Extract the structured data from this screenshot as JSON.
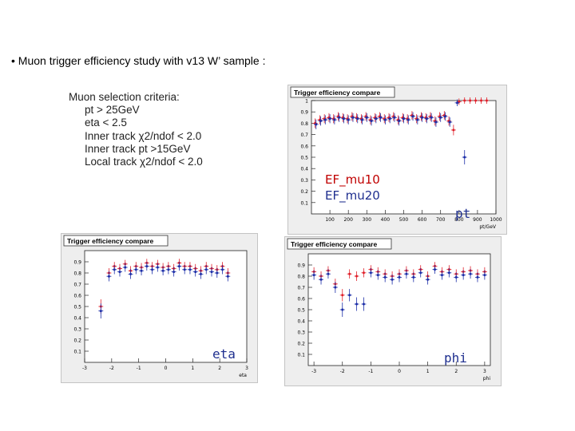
{
  "slide": {
    "heading": "• Muon trigger efficiency study with v13 W’ sample :",
    "criteria_title": "Muon selection criteria:",
    "criteria": [
      "pt > 25GeV",
      "eta  < 2.5",
      "Inner track χ2/ndof < 2.0",
      "Inner track pt >15GeV",
      "Local track χ2/ndof < 2.0"
    ],
    "legend": {
      "ef_mu10": "EF_mu10",
      "ef_mu20": "EF_mu20"
    },
    "tags": {
      "pt": "pt",
      "eta": "eta",
      "phi": "phi"
    },
    "colors": {
      "ef_mu10": "#e0202a",
      "ef_mu20": "#1c2ea8"
    }
  },
  "chart_data": [
    {
      "id": "pt",
      "type": "scatter",
      "title": "Trigger efficiency compare",
      "xlabel": "pt/GeV",
      "ylabel": "",
      "xlim": [
        0,
        1000
      ],
      "ylim": [
        0,
        1.0
      ],
      "xticks": [
        "100",
        "200",
        "300",
        "400",
        "500",
        "600",
        "700",
        "800",
        "900",
        "1000"
      ],
      "yticks": [
        "0.1",
        "0.2",
        "0.3",
        "0.4",
        "0.5",
        "0.6",
        "0.7",
        "0.8",
        "0.9",
        "1"
      ],
      "series": [
        {
          "name": "EF_mu10",
          "points": [
            [
              20,
              0.8
            ],
            [
              45,
              0.83
            ],
            [
              70,
              0.84
            ],
            [
              95,
              0.85
            ],
            [
              120,
              0.84
            ],
            [
              145,
              0.86
            ],
            [
              170,
              0.85
            ],
            [
              195,
              0.84
            ],
            [
              220,
              0.86
            ],
            [
              245,
              0.85
            ],
            [
              270,
              0.84
            ],
            [
              295,
              0.86
            ],
            [
              320,
              0.83
            ],
            [
              345,
              0.85
            ],
            [
              370,
              0.86
            ],
            [
              395,
              0.84
            ],
            [
              420,
              0.85
            ],
            [
              445,
              0.86
            ],
            [
              470,
              0.83
            ],
            [
              495,
              0.85
            ],
            [
              520,
              0.84
            ],
            [
              545,
              0.87
            ],
            [
              570,
              0.84
            ],
            [
              595,
              0.86
            ],
            [
              620,
              0.85
            ],
            [
              645,
              0.86
            ],
            [
              670,
              0.82
            ],
            [
              695,
              0.86
            ],
            [
              720,
              0.87
            ],
            [
              745,
              0.82
            ],
            [
              770,
              0.74
            ],
            [
              800,
              0.99
            ],
            [
              830,
              1.0
            ],
            [
              860,
              1.0
            ],
            [
              890,
              1.0
            ],
            [
              920,
              1.0
            ],
            [
              950,
              1.0
            ]
          ]
        },
        {
          "name": "EF_mu20",
          "points": [
            [
              25,
              0.79
            ],
            [
              50,
              0.82
            ],
            [
              75,
              0.83
            ],
            [
              100,
              0.84
            ],
            [
              125,
              0.83
            ],
            [
              150,
              0.85
            ],
            [
              175,
              0.84
            ],
            [
              200,
              0.83
            ],
            [
              225,
              0.85
            ],
            [
              250,
              0.84
            ],
            [
              275,
              0.83
            ],
            [
              300,
              0.85
            ],
            [
              325,
              0.82
            ],
            [
              350,
              0.84
            ],
            [
              375,
              0.85
            ],
            [
              400,
              0.83
            ],
            [
              425,
              0.84
            ],
            [
              450,
              0.85
            ],
            [
              475,
              0.82
            ],
            [
              500,
              0.84
            ],
            [
              525,
              0.83
            ],
            [
              550,
              0.86
            ],
            [
              575,
              0.83
            ],
            [
              600,
              0.85
            ],
            [
              625,
              0.84
            ],
            [
              650,
              0.85
            ],
            [
              675,
              0.81
            ],
            [
              700,
              0.85
            ],
            [
              725,
              0.86
            ],
            [
              750,
              0.81
            ],
            [
              790,
              0.98
            ],
            [
              830,
              0.5
            ]
          ]
        }
      ]
    },
    {
      "id": "eta",
      "type": "scatter",
      "title": "Trigger efficiency compare",
      "xlabel": "eta",
      "ylabel": "",
      "xlim": [
        -3,
        3
      ],
      "ylim": [
        0,
        1.0
      ],
      "xticks": [
        "-3",
        "-2",
        "-1",
        "0",
        "1",
        "2",
        "3"
      ],
      "yticks": [
        "0.1",
        "0.2",
        "0.3",
        "0.4",
        "0.5",
        "0.6",
        "0.7",
        "0.8",
        "0.9"
      ],
      "series": [
        {
          "name": "EF_mu10",
          "points": [
            [
              -2.4,
              0.5
            ],
            [
              -2.1,
              0.8
            ],
            [
              -1.9,
              0.86
            ],
            [
              -1.7,
              0.84
            ],
            [
              -1.5,
              0.88
            ],
            [
              -1.3,
              0.82
            ],
            [
              -1.1,
              0.86
            ],
            [
              -0.9,
              0.85
            ],
            [
              -0.7,
              0.89
            ],
            [
              -0.5,
              0.86
            ],
            [
              -0.3,
              0.88
            ],
            [
              -0.1,
              0.85
            ],
            [
              0.1,
              0.86
            ],
            [
              0.3,
              0.84
            ],
            [
              0.5,
              0.89
            ],
            [
              0.7,
              0.86
            ],
            [
              0.9,
              0.86
            ],
            [
              1.1,
              0.84
            ],
            [
              1.3,
              0.82
            ],
            [
              1.5,
              0.86
            ],
            [
              1.7,
              0.84
            ],
            [
              1.9,
              0.83
            ],
            [
              2.1,
              0.86
            ],
            [
              2.3,
              0.8
            ]
          ]
        },
        {
          "name": "EF_mu20",
          "points": [
            [
              -2.4,
              0.46
            ],
            [
              -2.1,
              0.77
            ],
            [
              -1.9,
              0.83
            ],
            [
              -1.7,
              0.81
            ],
            [
              -1.5,
              0.85
            ],
            [
              -1.3,
              0.79
            ],
            [
              -1.1,
              0.83
            ],
            [
              -0.9,
              0.82
            ],
            [
              -0.7,
              0.86
            ],
            [
              -0.5,
              0.83
            ],
            [
              -0.3,
              0.85
            ],
            [
              -0.1,
              0.82
            ],
            [
              0.1,
              0.83
            ],
            [
              0.3,
              0.81
            ],
            [
              0.5,
              0.86
            ],
            [
              0.7,
              0.83
            ],
            [
              0.9,
              0.83
            ],
            [
              1.1,
              0.81
            ],
            [
              1.3,
              0.79
            ],
            [
              1.5,
              0.83
            ],
            [
              1.7,
              0.81
            ],
            [
              1.9,
              0.8
            ],
            [
              2.1,
              0.83
            ],
            [
              2.3,
              0.77
            ]
          ]
        }
      ]
    },
    {
      "id": "phi",
      "type": "scatter",
      "title": "Trigger efficiency compare",
      "xlabel": "phi",
      "ylabel": "",
      "xlim": [
        -3.2,
        3.2
      ],
      "ylim": [
        0,
        1.0
      ],
      "xticks": [
        "-3",
        "-2",
        "-1",
        "0",
        "1",
        "2",
        "3"
      ],
      "yticks": [
        "0.1",
        "0.2",
        "0.3",
        "0.4",
        "0.5",
        "0.6",
        "0.7",
        "0.8",
        "0.9"
      ],
      "series": [
        {
          "name": "EF_mu10",
          "points": [
            [
              -3.0,
              0.84
            ],
            [
              -2.75,
              0.8
            ],
            [
              -2.5,
              0.85
            ],
            [
              -2.25,
              0.73
            ],
            [
              -2.0,
              0.63
            ],
            [
              -1.75,
              0.82
            ],
            [
              -1.5,
              0.8
            ],
            [
              -1.25,
              0.83
            ],
            [
              -1.0,
              0.86
            ],
            [
              -0.75,
              0.84
            ],
            [
              -0.5,
              0.82
            ],
            [
              -0.25,
              0.8
            ],
            [
              0.0,
              0.82
            ],
            [
              0.25,
              0.85
            ],
            [
              0.5,
              0.82
            ],
            [
              0.75,
              0.86
            ],
            [
              1.0,
              0.8
            ],
            [
              1.25,
              0.89
            ],
            [
              1.5,
              0.84
            ],
            [
              1.75,
              0.86
            ],
            [
              2.0,
              0.82
            ],
            [
              2.25,
              0.84
            ],
            [
              2.5,
              0.85
            ],
            [
              2.75,
              0.82
            ],
            [
              3.0,
              0.84
            ]
          ]
        },
        {
          "name": "EF_mu20",
          "points": [
            [
              -3.0,
              0.81
            ],
            [
              -2.75,
              0.77
            ],
            [
              -2.5,
              0.82
            ],
            [
              -2.25,
              0.7
            ],
            [
              -2.0,
              0.5
            ],
            [
              -1.75,
              0.63
            ],
            [
              -1.5,
              0.55
            ],
            [
              -1.25,
              0.55
            ],
            [
              -1.0,
              0.83
            ],
            [
              -0.75,
              0.81
            ],
            [
              -0.5,
              0.79
            ],
            [
              -0.25,
              0.77
            ],
            [
              0.0,
              0.79
            ],
            [
              0.25,
              0.82
            ],
            [
              0.5,
              0.79
            ],
            [
              0.75,
              0.83
            ],
            [
              1.0,
              0.77
            ],
            [
              1.25,
              0.86
            ],
            [
              1.5,
              0.81
            ],
            [
              1.75,
              0.83
            ],
            [
              2.0,
              0.79
            ],
            [
              2.25,
              0.81
            ],
            [
              2.5,
              0.82
            ],
            [
              2.75,
              0.79
            ],
            [
              3.0,
              0.81
            ]
          ]
        }
      ]
    }
  ]
}
